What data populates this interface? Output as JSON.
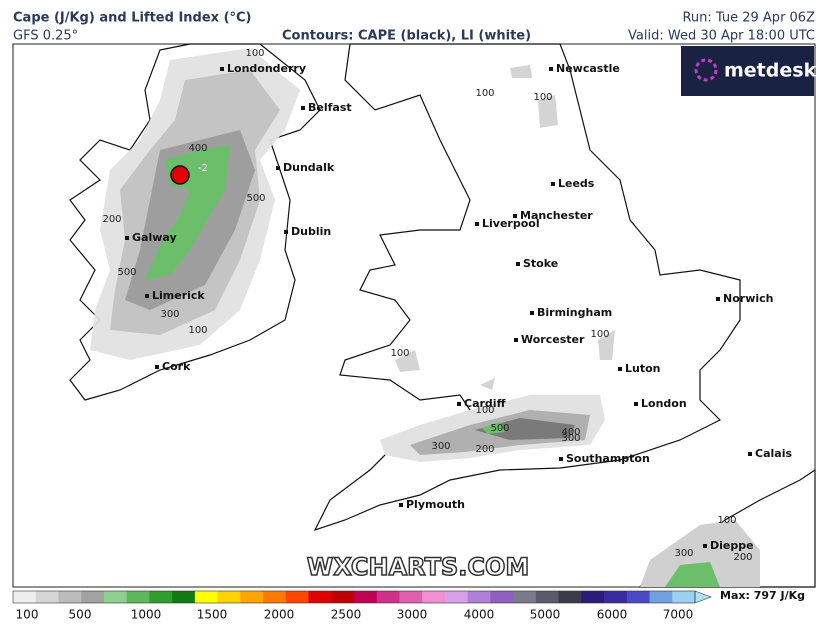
{
  "header": {
    "title": "Cape (J/Kg) and Lifted Index (°C)",
    "model": "GFS 0.25°",
    "contours": "Contours: CAPE (black), LI (white)",
    "run": "Run: Tue 29 Apr 06Z",
    "valid": "Valid: Wed 30 Apr 18:00 UTC"
  },
  "logo": "metdesk",
  "watermark": "WXCHARTS.COM",
  "map": {
    "cities": [
      "Londonderry",
      "Belfast",
      "Dundalk",
      "Dublin",
      "Galway",
      "Limerick",
      "Cork",
      "Newcastle",
      "Leeds",
      "Manchester",
      "Liverpool",
      "Stoke",
      "Birmingham",
      "Norwich",
      "Worcester",
      "Luton",
      "Cardiff",
      "London",
      "Southampton",
      "Calais",
      "Plymouth",
      "Dieppe"
    ],
    "cape_contour_labels": [
      100,
      400,
      500,
      200,
      500,
      300,
      100,
      100,
      100,
      100,
      100,
      100,
      500,
      400,
      300,
      300,
      200,
      100,
      200,
      300
    ],
    "li_contour_labels": [
      -2
    ]
  },
  "colorbar": {
    "ticks": [
      100,
      500,
      1000,
      1500,
      2000,
      2500,
      3000,
      4000,
      5000,
      6000,
      7000
    ],
    "colors": [
      "#eeeeee",
      "#d6d6d6",
      "#bcbcbc",
      "#a2a2a2",
      "#8fcf8f",
      "#5cb85c",
      "#2e9e2e",
      "#127a12",
      "#ffff00",
      "#ffd200",
      "#ffa500",
      "#ff7a00",
      "#ff4500",
      "#e00000",
      "#c00000",
      "#c00050",
      "#d0308a",
      "#e060b0",
      "#f090d0",
      "#d8a0e8",
      "#b080d8",
      "#9060c0",
      "#7a7a8a",
      "#5a5a6a",
      "#3a3a4a",
      "#2a1a7a",
      "#3a2aa0",
      "#4a4ac8",
      "#70a0e0",
      "#9ad0f0"
    ],
    "max": "Max: 797 J/Kg"
  }
}
